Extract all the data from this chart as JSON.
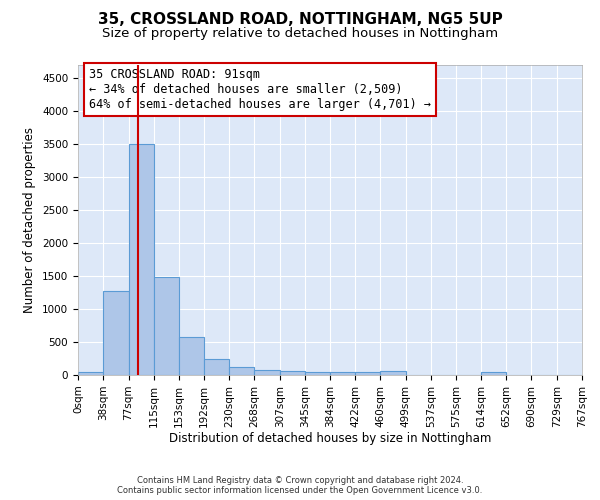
{
  "title": "35, CROSSLAND ROAD, NOTTINGHAM, NG5 5UP",
  "subtitle": "Size of property relative to detached houses in Nottingham",
  "xlabel": "Distribution of detached houses by size in Nottingham",
  "ylabel": "Number of detached properties",
  "bin_edges": [
    0,
    38,
    77,
    115,
    153,
    192,
    230,
    268,
    307,
    345,
    384,
    422,
    460,
    499,
    537,
    575,
    614,
    652,
    690,
    729,
    767
  ],
  "bar_heights": [
    40,
    1280,
    3500,
    1480,
    575,
    240,
    115,
    80,
    55,
    45,
    45,
    45,
    60,
    0,
    0,
    0,
    50,
    0,
    0,
    0
  ],
  "bar_color": "#aec6e8",
  "bar_edge_color": "#5b9bd5",
  "red_line_x": 91,
  "red_line_color": "#cc0000",
  "annotation_line1": "35 CROSSLAND ROAD: 91sqm",
  "annotation_line2": "← 34% of detached houses are smaller (2,509)",
  "annotation_line3": "64% of semi-detached houses are larger (4,701) →",
  "ylim": [
    0,
    4700
  ],
  "yticks": [
    0,
    500,
    1000,
    1500,
    2000,
    2500,
    3000,
    3500,
    4000,
    4500
  ],
  "background_color": "#ffffff",
  "plot_bg_color": "#dde8f8",
  "grid_color": "#ffffff",
  "footer_line1": "Contains HM Land Registry data © Crown copyright and database right 2024.",
  "footer_line2": "Contains public sector information licensed under the Open Government Licence v3.0.",
  "title_fontsize": 11,
  "subtitle_fontsize": 9.5,
  "tick_label_fontsize": 7.5,
  "ylabel_fontsize": 8.5,
  "xlabel_fontsize": 8.5,
  "annot_fontsize": 8.5
}
